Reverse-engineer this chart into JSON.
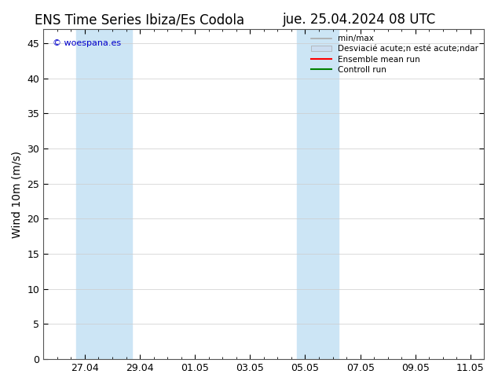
{
  "title_left": "ENS Time Series Ibiza/Es Codola",
  "title_right": "jue. 25.04.2024 08 UTC",
  "ylabel": "Wind 10m (m/s)",
  "watermark": "© woespana.es",
  "background_color": "#ffffff",
  "plot_bg_color": "#ffffff",
  "shaded_color": "#cce5f5",
  "ylim": [
    0,
    47
  ],
  "yticks": [
    0,
    5,
    10,
    15,
    20,
    25,
    30,
    35,
    40,
    45
  ],
  "xlim": [
    0.5,
    16.5
  ],
  "xtick_positions": [
    2,
    4,
    6,
    8,
    10,
    12,
    14,
    16
  ],
  "xtick_labels": [
    "27.04",
    "29.04",
    "01.05",
    "03.05",
    "05.05",
    "07.05",
    "09.05",
    "11.05"
  ],
  "band1_xmin": 1.7,
  "band1_xmax": 3.7,
  "band2_xmin": 9.7,
  "band2_xmax": 11.2,
  "legend_label_minmax": "min/max",
  "legend_label_desv": "Desviacié acute;n esté acute;ndar",
  "legend_label_ensemble": "Ensemble mean run",
  "legend_label_control": "Controll run",
  "color_minmax": "#aaaaaa",
  "color_desv": "#ccddf0",
  "color_ensemble": "#ff0000",
  "color_control": "#008000",
  "title_fontsize": 12,
  "axis_label_fontsize": 10,
  "tick_fontsize": 9,
  "watermark_color": "#0000cc",
  "watermark_fontsize": 8,
  "legend_fontsize": 7.5
}
